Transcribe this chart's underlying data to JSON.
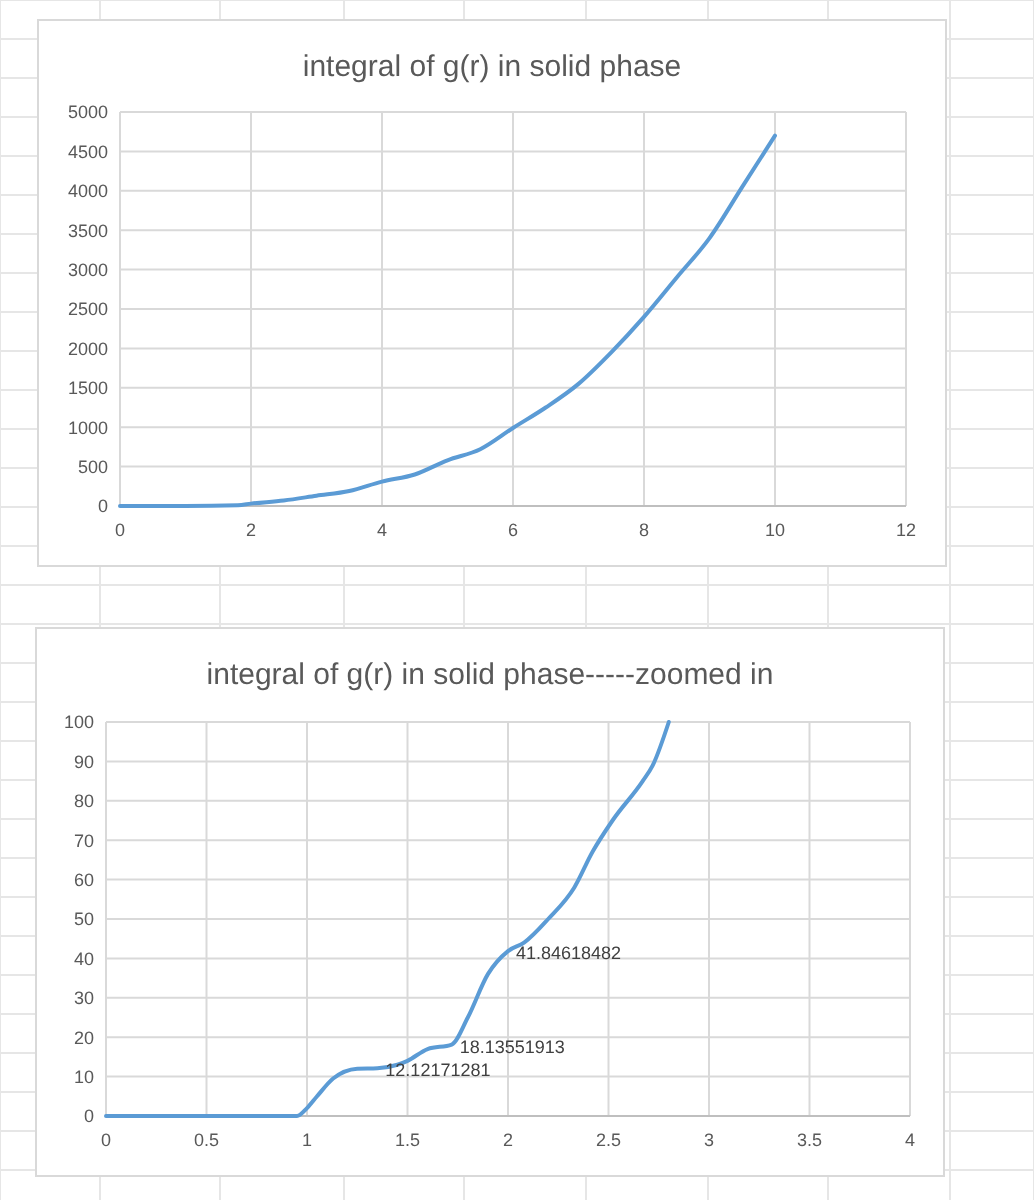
{
  "chart_data": [
    {
      "type": "line",
      "title": "integral of g(r) in solid phase",
      "xlim": [
        0,
        12
      ],
      "xticks": [
        0,
        2,
        4,
        6,
        8,
        10,
        12
      ],
      "ylim": [
        0,
        5000
      ],
      "yticks": [
        0,
        500,
        1000,
        1500,
        2000,
        2500,
        3000,
        3500,
        4000,
        4500,
        5000
      ],
      "grid": true,
      "series": [
        {
          "color": "#5b9bd5",
          "x": [
            0,
            1,
            1.8,
            2,
            2.5,
            3,
            3.5,
            4,
            4.5,
            5,
            5.5,
            6,
            6.5,
            7,
            7.5,
            8,
            8.5,
            9,
            9.5,
            10
          ],
          "values": [
            0,
            0,
            10,
            30,
            70,
            130,
            190,
            310,
            400,
            580,
            720,
            990,
            1250,
            1550,
            1950,
            2400,
            2900,
            3400,
            4050,
            4700
          ]
        }
      ]
    },
    {
      "type": "line",
      "title": "integral of g(r) in solid phase-----zoomed in",
      "xlim": [
        0,
        4
      ],
      "xticks": [
        0,
        0.5,
        1,
        1.5,
        2,
        2.5,
        3,
        3.5,
        4
      ],
      "ylim": [
        0,
        100
      ],
      "yticks": [
        0,
        10,
        20,
        30,
        40,
        50,
        60,
        70,
        80,
        90,
        100
      ],
      "grid": true,
      "series": [
        {
          "color": "#5b9bd5",
          "x": [
            0,
            0.95,
            1,
            1.05,
            1.13,
            1.25,
            1.35,
            1.45,
            1.5,
            1.6,
            1.72,
            1.8,
            1.9,
            2,
            2.08,
            2.2,
            2.33,
            2.42,
            2.52,
            2.67,
            2.72,
            2.8
          ],
          "values": [
            0,
            0,
            2,
            5,
            9.5,
            12,
            12.12171281,
            13,
            14,
            17,
            18.13551913,
            25,
            36,
            41.84618482,
            44,
            50,
            58,
            67,
            75,
            85,
            89,
            100
          ]
        }
      ],
      "annotations": [
        {
          "text": "12.12171281",
          "x": 1.35,
          "y": 12.12171281
        },
        {
          "text": "18.13551913",
          "x": 1.72,
          "y": 18.13551913
        },
        {
          "text": "41.84618482",
          "x": 2,
          "y": 41.84618482
        }
      ]
    }
  ]
}
